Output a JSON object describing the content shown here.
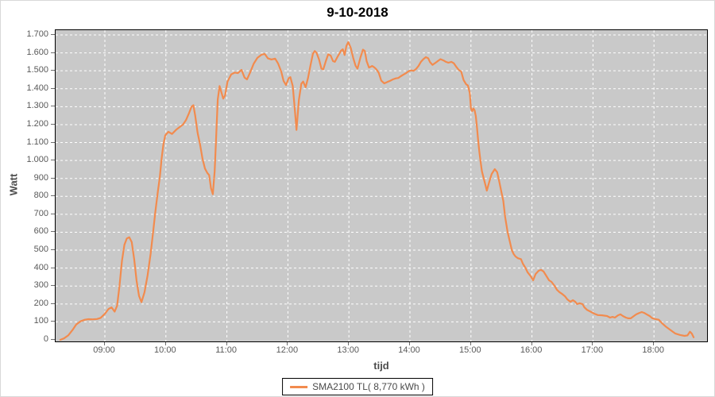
{
  "colors": {
    "line": "#F28B4E",
    "plot_background": "#C9C9C9",
    "gridline": "#FFFFFF",
    "tick_text": "#595959",
    "axis_label_text": "#4D4D4D",
    "title_text": "#000000",
    "legend_border": "#000000",
    "legend_background": "#FFFFFF"
  },
  "chart_data": {
    "type": "line",
    "title": "9-10-2018",
    "xlabel": "tijd",
    "ylabel": "Watt",
    "grid": true,
    "plot_background": "gray",
    "gridline_style": "white dashed",
    "legend_position": "bottom-center",
    "xlim_hours": [
      8.18,
      18.72
    ],
    "ylim": [
      0,
      1735
    ],
    "x_ticks": [
      {
        "t": 9,
        "label": "09:00"
      },
      {
        "t": 10,
        "label": "10:00"
      },
      {
        "t": 11,
        "label": "11:00"
      },
      {
        "t": 12,
        "label": "12:00"
      },
      {
        "t": 13,
        "label": "13:00"
      },
      {
        "t": 14,
        "label": "14:00"
      },
      {
        "t": 15,
        "label": "15:00"
      },
      {
        "t": 16,
        "label": "16:00"
      },
      {
        "t": 17,
        "label": "17:00"
      },
      {
        "t": 18,
        "label": "18:00"
      }
    ],
    "y_ticks": [
      {
        "v": 0,
        "label": "0"
      },
      {
        "v": 100,
        "label": "100"
      },
      {
        "v": 200,
        "label": "200"
      },
      {
        "v": 300,
        "label": "300"
      },
      {
        "v": 400,
        "label": "400"
      },
      {
        "v": 500,
        "label": "500"
      },
      {
        "v": 600,
        "label": "600"
      },
      {
        "v": 700,
        "label": "700"
      },
      {
        "v": 800,
        "label": "800"
      },
      {
        "v": 900,
        "label": "900"
      },
      {
        "v": 1000,
        "label": "1.000"
      },
      {
        "v": 1100,
        "label": "1.100"
      },
      {
        "v": 1200,
        "label": "1.200"
      },
      {
        "v": 1300,
        "label": "1.300"
      },
      {
        "v": 1400,
        "label": "1.400"
      },
      {
        "v": 1500,
        "label": "1.500"
      },
      {
        "v": 1600,
        "label": "1.600"
      },
      {
        "v": 1700,
        "label": "1.700"
      }
    ],
    "series": [
      {
        "name": "SMA2100 TL( 8,770 kWh )",
        "color": "#F28B4E",
        "x_unit": "hours_decimal",
        "y_unit": "watt",
        "points": [
          [
            8.27,
            0
          ],
          [
            8.33,
            8
          ],
          [
            8.4,
            25
          ],
          [
            8.47,
            55
          ],
          [
            8.53,
            85
          ],
          [
            8.6,
            103
          ],
          [
            8.67,
            112
          ],
          [
            8.73,
            115
          ],
          [
            8.8,
            114
          ],
          [
            8.87,
            116
          ],
          [
            8.93,
            122
          ],
          [
            9.0,
            145
          ],
          [
            9.06,
            172
          ],
          [
            9.11,
            181
          ],
          [
            9.16,
            157
          ],
          [
            9.2,
            190
          ],
          [
            9.24,
            300
          ],
          [
            9.28,
            440
          ],
          [
            9.32,
            530
          ],
          [
            9.36,
            565
          ],
          [
            9.4,
            572
          ],
          [
            9.44,
            545
          ],
          [
            9.48,
            450
          ],
          [
            9.52,
            330
          ],
          [
            9.56,
            245
          ],
          [
            9.6,
            210
          ],
          [
            9.65,
            265
          ],
          [
            9.7,
            360
          ],
          [
            9.75,
            480
          ],
          [
            9.79,
            600
          ],
          [
            9.83,
            720
          ],
          [
            9.87,
            830
          ],
          [
            9.9,
            905
          ],
          [
            9.93,
            1010
          ],
          [
            9.96,
            1090
          ],
          [
            9.99,
            1140
          ],
          [
            10.04,
            1160
          ],
          [
            10.1,
            1148
          ],
          [
            10.17,
            1172
          ],
          [
            10.23,
            1188
          ],
          [
            10.28,
            1200
          ],
          [
            10.33,
            1225
          ],
          [
            10.38,
            1265
          ],
          [
            10.42,
            1300
          ],
          [
            10.45,
            1308
          ],
          [
            10.48,
            1250
          ],
          [
            10.52,
            1155
          ],
          [
            10.56,
            1090
          ],
          [
            10.6,
            1010
          ],
          [
            10.64,
            955
          ],
          [
            10.68,
            930
          ],
          [
            10.71,
            918
          ],
          [
            10.74,
            845
          ],
          [
            10.77,
            812
          ],
          [
            10.8,
            940
          ],
          [
            10.82,
            1100
          ],
          [
            10.85,
            1340
          ],
          [
            10.88,
            1415
          ],
          [
            10.91,
            1380
          ],
          [
            10.94,
            1345
          ],
          [
            10.97,
            1362
          ],
          [
            11.01,
            1440
          ],
          [
            11.07,
            1480
          ],
          [
            11.13,
            1490
          ],
          [
            11.18,
            1487
          ],
          [
            11.24,
            1505
          ],
          [
            11.29,
            1462
          ],
          [
            11.33,
            1452
          ],
          [
            11.38,
            1490
          ],
          [
            11.44,
            1540
          ],
          [
            11.5,
            1572
          ],
          [
            11.57,
            1590
          ],
          [
            11.62,
            1594
          ],
          [
            11.67,
            1570
          ],
          [
            11.73,
            1563
          ],
          [
            11.79,
            1568
          ],
          [
            11.84,
            1540
          ],
          [
            11.89,
            1496
          ],
          [
            11.93,
            1443
          ],
          [
            11.97,
            1420
          ],
          [
            12.01,
            1458
          ],
          [
            12.04,
            1465
          ],
          [
            12.08,
            1415
          ],
          [
            12.11,
            1300
          ],
          [
            12.14,
            1170
          ],
          [
            12.18,
            1337
          ],
          [
            12.22,
            1428
          ],
          [
            12.25,
            1440
          ],
          [
            12.29,
            1408
          ],
          [
            12.33,
            1460
          ],
          [
            12.37,
            1530
          ],
          [
            12.41,
            1595
          ],
          [
            12.44,
            1610
          ],
          [
            12.47,
            1600
          ],
          [
            12.51,
            1563
          ],
          [
            12.55,
            1512
          ],
          [
            12.58,
            1508
          ],
          [
            12.62,
            1552
          ],
          [
            12.66,
            1592
          ],
          [
            12.7,
            1585
          ],
          [
            12.74,
            1554
          ],
          [
            12.77,
            1550
          ],
          [
            12.81,
            1576
          ],
          [
            12.87,
            1612
          ],
          [
            12.9,
            1620
          ],
          [
            12.93,
            1588
          ],
          [
            12.96,
            1640
          ],
          [
            12.99,
            1660
          ],
          [
            13.03,
            1628
          ],
          [
            13.07,
            1572
          ],
          [
            13.11,
            1528
          ],
          [
            13.14,
            1512
          ],
          [
            13.19,
            1576
          ],
          [
            13.23,
            1618
          ],
          [
            13.26,
            1610
          ],
          [
            13.29,
            1554
          ],
          [
            13.33,
            1518
          ],
          [
            13.38,
            1527
          ],
          [
            13.42,
            1518
          ],
          [
            13.45,
            1508
          ],
          [
            13.49,
            1488
          ],
          [
            13.53,
            1445
          ],
          [
            13.58,
            1430
          ],
          [
            13.63,
            1438
          ],
          [
            13.68,
            1445
          ],
          [
            13.72,
            1452
          ],
          [
            13.77,
            1458
          ],
          [
            13.81,
            1460
          ],
          [
            13.85,
            1470
          ],
          [
            13.9,
            1480
          ],
          [
            13.94,
            1488
          ],
          [
            13.98,
            1498
          ],
          [
            14.02,
            1502
          ],
          [
            14.06,
            1500
          ],
          [
            14.1,
            1510
          ],
          [
            14.14,
            1527
          ],
          [
            14.18,
            1550
          ],
          [
            14.22,
            1565
          ],
          [
            14.26,
            1576
          ],
          [
            14.3,
            1570
          ],
          [
            14.33,
            1548
          ],
          [
            14.37,
            1533
          ],
          [
            14.42,
            1545
          ],
          [
            14.46,
            1555
          ],
          [
            14.5,
            1565
          ],
          [
            14.55,
            1558
          ],
          [
            14.59,
            1550
          ],
          [
            14.63,
            1545
          ],
          [
            14.68,
            1550
          ],
          [
            14.72,
            1542
          ],
          [
            14.76,
            1522
          ],
          [
            14.8,
            1505
          ],
          [
            14.84,
            1496
          ],
          [
            14.88,
            1448
          ],
          [
            14.92,
            1425
          ],
          [
            14.95,
            1418
          ],
          [
            14.98,
            1377
          ],
          [
            15.0,
            1290
          ],
          [
            15.02,
            1275
          ],
          [
            15.04,
            1290
          ],
          [
            15.06,
            1280
          ],
          [
            15.08,
            1248
          ],
          [
            15.1,
            1180
          ],
          [
            15.12,
            1105
          ],
          [
            15.14,
            1040
          ],
          [
            15.16,
            988
          ],
          [
            15.18,
            940
          ],
          [
            15.21,
            900
          ],
          [
            15.24,
            860
          ],
          [
            15.26,
            832
          ],
          [
            15.3,
            880
          ],
          [
            15.34,
            925
          ],
          [
            15.39,
            952
          ],
          [
            15.43,
            935
          ],
          [
            15.46,
            890
          ],
          [
            15.5,
            823
          ],
          [
            15.53,
            775
          ],
          [
            15.56,
            686
          ],
          [
            15.6,
            602
          ],
          [
            15.63,
            558
          ],
          [
            15.67,
            500
          ],
          [
            15.7,
            478
          ],
          [
            15.73,
            465
          ],
          [
            15.77,
            455
          ],
          [
            15.82,
            450
          ],
          [
            15.85,
            425
          ],
          [
            15.89,
            403
          ],
          [
            15.93,
            376
          ],
          [
            15.98,
            354
          ],
          [
            16.02,
            332
          ],
          [
            16.06,
            367
          ],
          [
            16.11,
            385
          ],
          [
            16.15,
            390
          ],
          [
            16.19,
            381
          ],
          [
            16.24,
            354
          ],
          [
            16.28,
            332
          ],
          [
            16.32,
            323
          ],
          [
            16.37,
            301
          ],
          [
            16.41,
            279
          ],
          [
            16.45,
            266
          ],
          [
            16.49,
            257
          ],
          [
            16.54,
            243
          ],
          [
            16.58,
            226
          ],
          [
            16.63,
            212
          ],
          [
            16.67,
            221
          ],
          [
            16.71,
            212
          ],
          [
            16.74,
            199
          ],
          [
            16.78,
            204
          ],
          [
            16.83,
            199
          ],
          [
            16.86,
            181
          ],
          [
            16.9,
            168
          ],
          [
            16.95,
            159
          ],
          [
            17.02,
            146
          ],
          [
            17.08,
            138
          ],
          [
            17.15,
            137
          ],
          [
            17.23,
            133
          ],
          [
            17.28,
            124
          ],
          [
            17.32,
            128
          ],
          [
            17.36,
            124
          ],
          [
            17.41,
            137
          ],
          [
            17.45,
            142
          ],
          [
            17.49,
            133
          ],
          [
            17.54,
            124
          ],
          [
            17.58,
            120
          ],
          [
            17.62,
            120
          ],
          [
            17.67,
            133
          ],
          [
            17.71,
            142
          ],
          [
            17.76,
            150
          ],
          [
            17.8,
            155
          ],
          [
            17.84,
            150
          ],
          [
            17.88,
            142
          ],
          [
            17.93,
            133
          ],
          [
            17.97,
            121
          ],
          [
            18.02,
            116
          ],
          [
            18.08,
            112
          ],
          [
            18.14,
            90
          ],
          [
            18.19,
            75
          ],
          [
            18.27,
            55
          ],
          [
            18.35,
            35
          ],
          [
            18.43,
            27
          ],
          [
            18.5,
            22
          ],
          [
            18.55,
            25
          ],
          [
            18.59,
            45
          ],
          [
            18.62,
            35
          ],
          [
            18.65,
            14
          ]
        ]
      }
    ]
  }
}
